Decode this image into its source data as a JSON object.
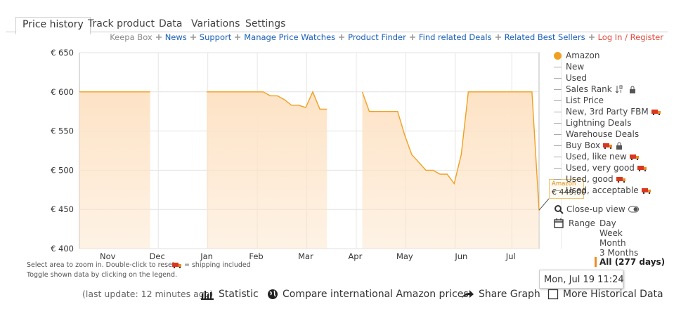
{
  "tabs": [
    "Price history",
    "Track product",
    "Data",
    "Variations",
    "Settings"
  ],
  "links": [
    "Keepa Box",
    "News",
    "Support",
    "Manage Price Watches",
    "Product Finder",
    "Find related Deals",
    "Related Best Sellers",
    "Log In / Register"
  ],
  "chart_data": {
    "type": "line",
    "categories": [
      null,
      null,
      null,
      null,
      "Nov",
      null,
      null,
      null,
      null,
      null,
      null,
      "Dec",
      null,
      null,
      null,
      null,
      null,
      null,
      "Jan",
      null,
      null,
      null,
      null,
      null,
      null,
      "Feb",
      null,
      null,
      null,
      null,
      null,
      null,
      "Mar",
      null,
      null,
      null,
      null,
      null,
      null,
      "Apr",
      null,
      null,
      null,
      null,
      null,
      null,
      "May",
      null,
      null,
      null,
      null,
      null,
      null,
      null,
      "Jun",
      null,
      null,
      null,
      null,
      null,
      null,
      "Jul",
      null,
      null,
      null,
      null
    ],
    "series": [
      {
        "name": "Amazon",
        "color": "#f0a020",
        "values": [
          600,
          600,
          600,
          600,
          600,
          600,
          600,
          600,
          600,
          600,
          600,
          null,
          null,
          null,
          null,
          null,
          null,
          null,
          600,
          600,
          600,
          600,
          600,
          600,
          600,
          600,
          600,
          595,
          595,
          590,
          583,
          583,
          580,
          600,
          578,
          578,
          null,
          null,
          null,
          null,
          600,
          575,
          575,
          575,
          575,
          575,
          545,
          520,
          510,
          500,
          500,
          495,
          495,
          483,
          520,
          600,
          600,
          600,
          600,
          600,
          600,
          600,
          600,
          600,
          600,
          449
        ],
        "value_labels": [
          null,
          null,
          null,
          null,
          null,
          null,
          null,
          null,
          null,
          null,
          null,
          null,
          null,
          null,
          null,
          null,
          null,
          null,
          null,
          null,
          null,
          null,
          null,
          null,
          null,
          null,
          null,
          null,
          null,
          null,
          null,
          null,
          null,
          null,
          null,
          null,
          null,
          null,
          null,
          null,
          null,
          null,
          null,
          null,
          null,
          null,
          null,
          null,
          null,
          null,
          null,
          null,
          null,
          null,
          null,
          null,
          null,
          null,
          null,
          null,
          null,
          null,
          null,
          null,
          null,
          "€ 449.00"
        ]
      }
    ],
    "ylim": [
      400,
      650
    ],
    "yticks": [
      {
        "value": 400,
        "label": "€ 400"
      },
      {
        "value": 450,
        "label": "€ 450"
      },
      {
        "value": 500,
        "label": "€ 500"
      },
      {
        "value": 550,
        "label": "€ 550"
      },
      {
        "value": 600,
        "label": "€ 600"
      },
      {
        "value": 650,
        "label": "€ 650"
      }
    ],
    "grid": true,
    "area_color": "#fde3c6",
    "tooltip_date": "Mon, Jul 19 11:24"
  },
  "legend": {
    "items": [
      "New",
      "Used",
      "Sales Rank",
      "List Price",
      "New, 3rd Party FBM",
      "Lightning Deals",
      "Warehouse Deals",
      "Buy Box",
      "Used, like new",
      "Used, very good",
      "Used, good",
      "Used, acceptable"
    ],
    "close_up": "Close-up view",
    "range": "Range",
    "range_options": [
      "Day",
      "Week",
      "Month",
      "3 Months",
      "All (277 days)"
    ]
  },
  "hints": [
    "Select area to zoom in. Double-click to reset.",
    "= shipping included",
    "Toggle shown data by clicking on the legend."
  ],
  "footer": {
    "last_update": "(last update: 12 minutes ago)",
    "buttons": [
      "Statistic",
      "Compare international Amazon prices",
      "Share Graph",
      "More Historical Data"
    ]
  }
}
